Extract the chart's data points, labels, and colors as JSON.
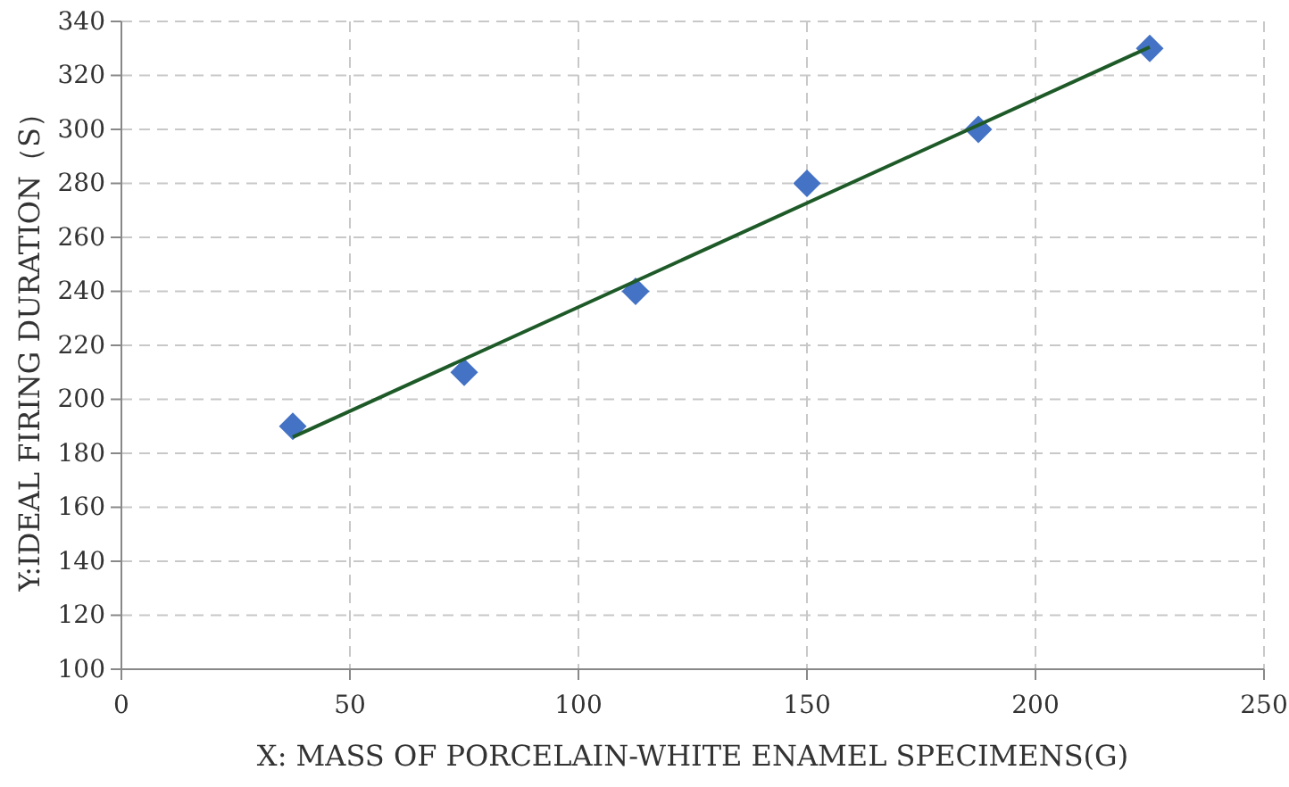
{
  "chart_data": {
    "type": "scatter",
    "xlabel": "X: MASS OF PORCELAIN-WHITE ENAMEL SPECIMENS(G)",
    "ylabel": "Y:IDEAL FIRING DURATION（S）",
    "xlim": [
      0,
      250
    ],
    "xticks": [
      0,
      50,
      100,
      150,
      200,
      250
    ],
    "ylim": [
      100,
      340
    ],
    "yticks": [
      100,
      120,
      140,
      160,
      180,
      200,
      220,
      240,
      260,
      280,
      300,
      320,
      340
    ],
    "grid": true,
    "series": [
      {
        "marker": "diamond",
        "color": "#4472c4",
        "x": [
          37.5,
          75,
          112.5,
          150,
          187.5,
          225
        ],
        "values": [
          190,
          210,
          240,
          280,
          300,
          330
        ]
      },
      {
        "type": "line",
        "color": "#1e5a28",
        "x": [
          37.5,
          225
        ],
        "values": [
          186,
          330.5
        ]
      }
    ]
  }
}
